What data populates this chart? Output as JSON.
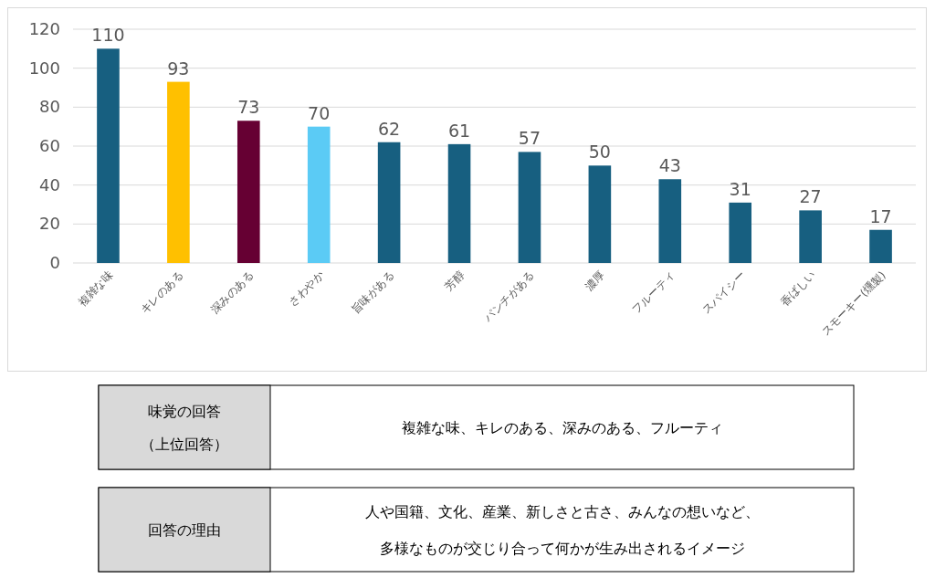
{
  "chart_data": {
    "type": "bar",
    "categories": [
      "複雑な味",
      "キレのある",
      "深みのある",
      "さわやか",
      "旨味がある",
      "芳醇",
      "パンチがある",
      "濃厚",
      "フルーティ",
      "スパイシー",
      "香ばしい",
      "スモーキー(燻製)"
    ],
    "values": [
      110,
      93,
      73,
      70,
      62,
      61,
      57,
      50,
      43,
      31,
      27,
      17
    ],
    "colors": [
      "#175f80",
      "#ffc000",
      "#660033",
      "#5bcbf5",
      "#175f80",
      "#175f80",
      "#175f80",
      "#175f80",
      "#175f80",
      "#175f80",
      "#175f80",
      "#175f80"
    ],
    "ylim": [
      0,
      120
    ],
    "yticks": [
      0,
      20,
      40,
      60,
      80,
      100,
      120
    ],
    "grid": "y",
    "data_labels": true,
    "annotations": [
      "味覚の回答",
      "（上位回答）",
      "複雑な味、キレのある、深みのある、フルーティ",
      "回答の理由",
      "人や国籍、文化、産業、新しさと古さ、みんなの想いなど、",
      "多様なものが交じり合って何かが生み出されるイメージ"
    ]
  }
}
